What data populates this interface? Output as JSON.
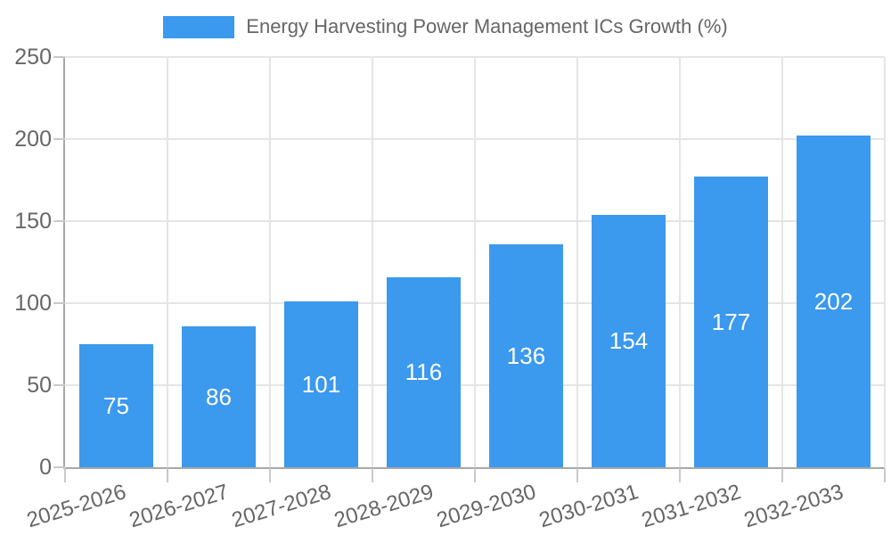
{
  "chart_data": {
    "type": "bar",
    "title": "Energy Harvesting Power Management ICs Growth (%)",
    "categories": [
      "2025-2026",
      "2026-2027",
      "2027-2028",
      "2028-2029",
      "2029-2030",
      "2030-2031",
      "2031-2032",
      "2032-2033"
    ],
    "values": [
      75,
      86,
      101,
      116,
      136,
      154,
      177,
      202
    ],
    "xlabel": "",
    "ylabel": "",
    "ylim": [
      0,
      250
    ],
    "yticks": [
      0,
      50,
      100,
      150,
      200,
      250
    ],
    "grid": true,
    "legend_position": "top",
    "colors": {
      "bar": "#3b99ee",
      "value_label": "#ffffff",
      "axis_text": "#666666",
      "gridline": "#e5e5e5",
      "axis_line": "#a8a8a8",
      "tick_mark": "#c9c9c9",
      "background": "#ffffff"
    }
  }
}
